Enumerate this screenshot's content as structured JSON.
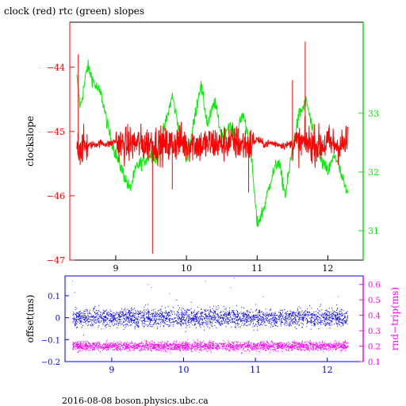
{
  "header": {
    "title": "clock (red) rtc (green) slopes"
  },
  "footer": {
    "text": "2016-08-08  boson.physics.ubc.ca"
  },
  "colors": {
    "clock": "#ff0000",
    "rtc": "#00ee00",
    "offset": "#0000ff",
    "rtt": "#ff00ff",
    "frame": "#000000"
  },
  "chart_data": [
    {
      "type": "line",
      "title": "clock (red) rtc (green) slopes",
      "ylabel": "clockslope",
      "xlim": [
        8.35,
        12.5
      ],
      "x_ticks": [
        {
          "value": 9,
          "label": "9"
        },
        {
          "value": 10,
          "label": "10"
        },
        {
          "value": 11,
          "label": "11"
        },
        {
          "value": 12,
          "label": "12"
        }
      ],
      "ylim": [
        -47.0,
        -43.3
      ],
      "y_ticks": [
        {
          "value": -44,
          "label": "−44"
        },
        {
          "value": -45,
          "label": "−45"
        },
        {
          "value": -46,
          "label": "−46"
        },
        {
          "value": -47,
          "label": "−47"
        }
      ],
      "y2lim": [
        30.5,
        34.55
      ],
      "y2_ticks": [
        {
          "value": 31,
          "label": "31"
        },
        {
          "value": 32,
          "label": "32"
        },
        {
          "value": 33,
          "label": "33"
        }
      ],
      "grid": false,
      "series": [
        {
          "name": "clock",
          "axis": "left",
          "x": [
            8.45,
            8.5,
            8.6,
            8.7,
            8.8,
            8.9,
            9.0,
            9.1,
            9.2,
            9.3,
            9.4,
            9.5,
            9.6,
            9.7,
            9.8,
            9.9,
            10.0,
            10.1,
            10.2,
            10.3,
            10.4,
            10.5,
            10.6,
            10.7,
            10.8,
            10.9,
            11.0,
            11.1,
            11.2,
            11.3,
            11.4,
            11.5,
            11.6,
            11.7,
            11.8,
            11.9,
            12.0,
            12.1,
            12.2,
            12.28
          ],
          "values": [
            -45.2,
            -45.25,
            -45.22,
            -45.2,
            -45.18,
            -45.2,
            -45.15,
            -45.22,
            -45.2,
            -45.18,
            -45.2,
            -45.17,
            -45.2,
            -45.22,
            -45.2,
            -45.15,
            -45.2,
            -45.18,
            -45.22,
            -45.2,
            -45.18,
            -45.2,
            -45.15,
            -45.18,
            -45.2,
            -45.22,
            -45.12,
            -45.2,
            -45.18,
            -45.2,
            -45.22,
            -45.18,
            -45.2,
            -45.17,
            -45.2,
            -45.22,
            -45.18,
            -45.2,
            -45.22,
            -45.18
          ]
        },
        {
          "name": "rtc",
          "axis": "right",
          "x": [
            8.45,
            8.5,
            8.6,
            8.7,
            8.8,
            8.9,
            9.0,
            9.1,
            9.2,
            9.3,
            9.4,
            9.5,
            9.6,
            9.7,
            9.8,
            9.9,
            10.0,
            10.1,
            10.2,
            10.3,
            10.4,
            10.5,
            10.6,
            10.7,
            10.8,
            10.9,
            11.0,
            11.1,
            11.2,
            11.3,
            11.4,
            11.5,
            11.6,
            11.7,
            11.8,
            11.9,
            12.0,
            12.1,
            12.2,
            12.28
          ],
          "values": [
            33.6,
            33.1,
            33.8,
            33.5,
            33.3,
            32.7,
            32.3,
            32.0,
            31.7,
            32.1,
            32.2,
            32.3,
            32.2,
            32.8,
            33.3,
            32.7,
            32.2,
            32.8,
            33.5,
            32.8,
            33.2,
            32.6,
            32.8,
            32.6,
            33.0,
            32.5,
            31.1,
            31.4,
            31.9,
            32.2,
            31.6,
            32.4,
            33.0,
            33.2,
            32.6,
            32.2,
            32.0,
            32.3,
            31.9,
            31.6
          ]
        }
      ]
    },
    {
      "type": "scatter",
      "ylabel": "offset(ms)",
      "y2label": "rnd−trip(ms)",
      "xlim": [
        8.35,
        12.5
      ],
      "x_ticks": [
        {
          "value": 9,
          "label": "9"
        },
        {
          "value": 10,
          "label": "10"
        },
        {
          "value": 11,
          "label": "11"
        },
        {
          "value": 12,
          "label": "12"
        }
      ],
      "ylim": [
        -0.2,
        0.19
      ],
      "y_ticks": [
        {
          "value": 0.1,
          "label": "0.1"
        },
        {
          "value": 0,
          "label": "0"
        },
        {
          "value": -0.1,
          "label": "−0.1"
        },
        {
          "value": -0.2,
          "label": "−0.2"
        }
      ],
      "y2lim": [
        0.1,
        0.655
      ],
      "y2_ticks": [
        {
          "value": 0.1,
          "label": "0.1"
        },
        {
          "value": 0.2,
          "label": "0.2"
        },
        {
          "value": 0.3,
          "label": "0.3"
        },
        {
          "value": 0.4,
          "label": "0.4"
        },
        {
          "value": 0.5,
          "label": "0.5"
        },
        {
          "value": 0.6,
          "label": "0.6"
        }
      ],
      "grid": false,
      "series": [
        {
          "name": "offset",
          "axis": "left",
          "x_range": [
            8.45,
            12.28
          ],
          "center": 0.0,
          "spread": 0.04,
          "outliers": [
            [
              9.5,
              0.06
            ],
            [
              10.1,
              0.07
            ],
            [
              11.0,
              0.06
            ],
            [
              11.6,
              0.05
            ],
            [
              8.6,
              -0.08
            ],
            [
              9.9,
              0.08
            ]
          ]
        },
        {
          "name": "rnd-trip",
          "axis": "right",
          "x_range": [
            8.45,
            12.28
          ],
          "center": 0.2,
          "spread": 0.03,
          "outliers": [
            [
              8.45,
              0.62
            ],
            [
              8.48,
              0.55
            ],
            [
              9.5,
              0.6
            ],
            [
              9.55,
              0.58
            ],
            [
              10.65,
              0.58
            ],
            [
              10.7,
              0.64
            ],
            [
              10.3,
              0.62
            ],
            [
              11.1,
              0.52
            ],
            [
              9.8,
              0.54
            ],
            [
              12.15,
              0.52
            ]
          ]
        }
      ]
    }
  ]
}
